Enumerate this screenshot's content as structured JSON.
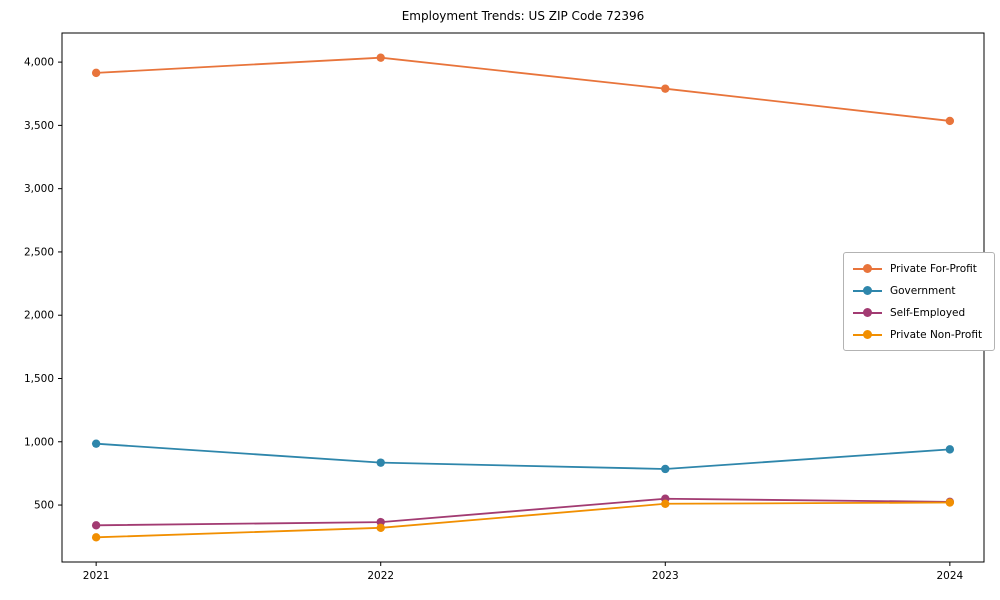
{
  "title": "Employment Trends: US ZIP Code 72396",
  "chart_data": {
    "type": "line",
    "title": "Employment Trends: US ZIP Code 72396",
    "xlabel": "",
    "ylabel": "",
    "x": [
      2021,
      2022,
      2023,
      2024
    ],
    "x_tick_labels": [
      "2021",
      "2022",
      "2023",
      "2024"
    ],
    "y_ticks": [
      500,
      1000,
      1500,
      2000,
      2500,
      3000,
      3500,
      4000
    ],
    "y_tick_labels": [
      "500",
      "1,000",
      "1,500",
      "2,000",
      "2,500",
      "3,000",
      "3,500",
      "4,000"
    ],
    "xlim": [
      2020.88,
      2024.12
    ],
    "ylim": [
      50,
      4230
    ],
    "grid": false,
    "legend_position": "center-right",
    "background_color": "#ffffff",
    "axis_color": "#000000",
    "legend_border_color": "#b3b3b3",
    "series": [
      {
        "name": "Private For-Profit",
        "color": "#E8743B",
        "values": [
          3915,
          4035,
          3790,
          3535
        ]
      },
      {
        "name": "Government",
        "color": "#2E86AB",
        "values": [
          985,
          835,
          785,
          940
        ]
      },
      {
        "name": "Self-Employed",
        "color": "#A23B72",
        "values": [
          340,
          365,
          550,
          525
        ]
      },
      {
        "name": "Private Non-Profit",
        "color": "#F18F01",
        "values": [
          245,
          320,
          510,
          520
        ]
      }
    ]
  }
}
